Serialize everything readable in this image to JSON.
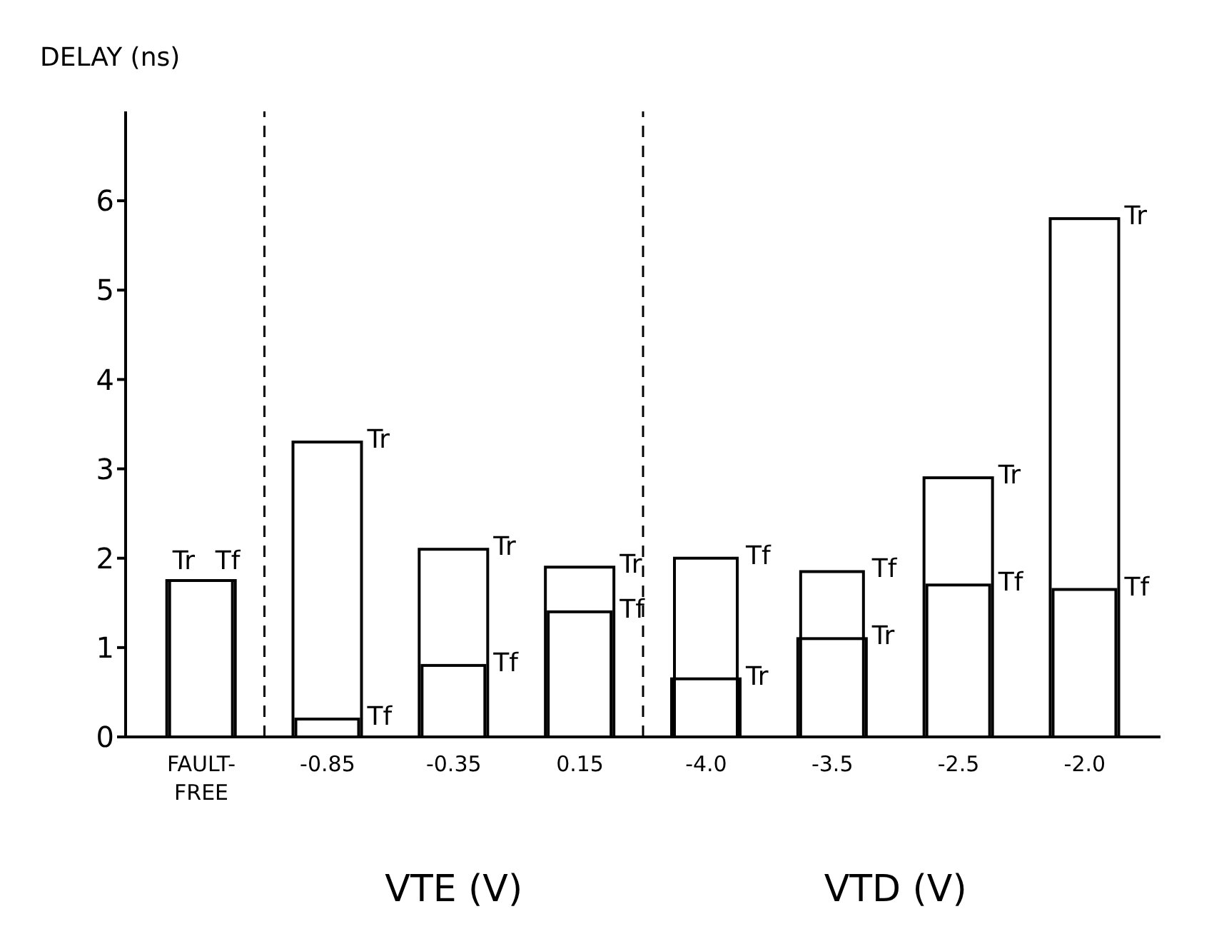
{
  "chart_data": {
    "type": "bar",
    "ylabel": "DELAY (ns)",
    "categories": [
      "FAULT-FREE",
      "-0.85",
      "-0.35",
      "0.15",
      "-4.0",
      "-3.5",
      "-2.5",
      "-2.0"
    ],
    "series": [
      {
        "name": "Tr",
        "color": "#000000",
        "values": [
          1.75,
          3.3,
          2.1,
          1.9,
          0.65,
          1.1,
          2.9,
          5.8
        ]
      },
      {
        "name": "Tf",
        "color": "#000000",
        "values": [
          1.75,
          0.2,
          0.8,
          1.4,
          2.0,
          1.85,
          1.7,
          1.65
        ]
      }
    ],
    "ylim": [
      0,
      7
    ],
    "yticks": [
      0,
      1,
      2,
      3,
      4,
      5,
      6
    ],
    "grid": false,
    "legend": false,
    "annotations": [
      "VTE (V)",
      "VTD (V)"
    ]
  }
}
